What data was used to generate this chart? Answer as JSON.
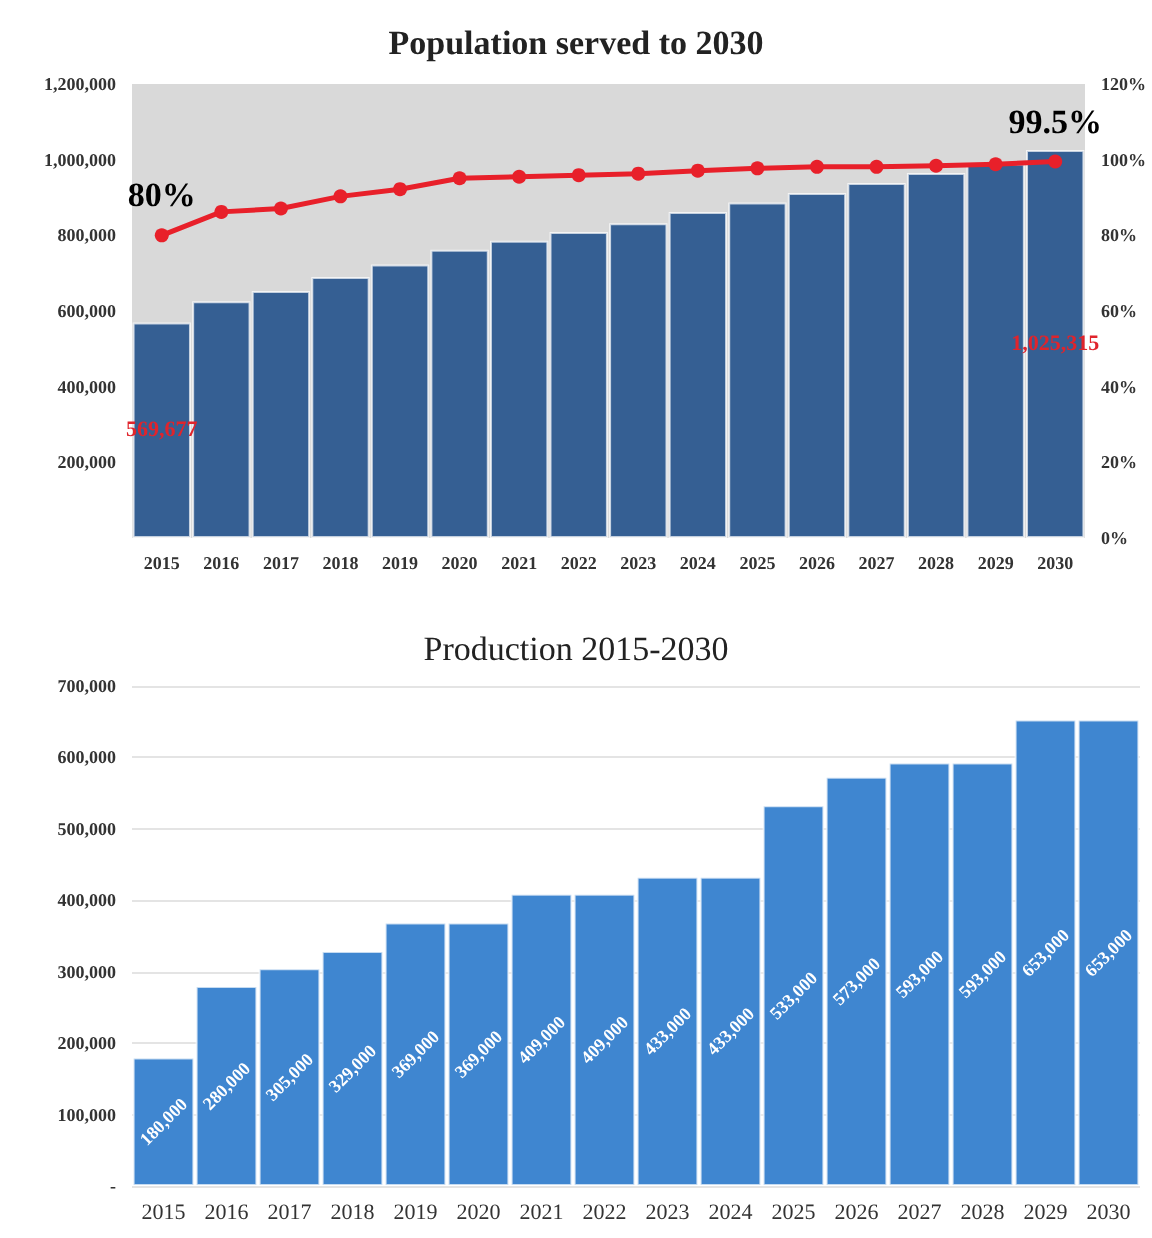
{
  "chart_data": [
    {
      "type": "bar",
      "title": "Population served to 2030",
      "categories": [
        "2015",
        "2016",
        "2017",
        "2018",
        "2019",
        "2020",
        "2021",
        "2022",
        "2023",
        "2024",
        "2025",
        "2026",
        "2027",
        "2028",
        "2029",
        "2030"
      ],
      "series": [
        {
          "color": "#355f93",
          "values": [
            569677,
            626000,
            653000,
            690000,
            723000,
            762000,
            786000,
            809000,
            832000,
            862000,
            887000,
            912000,
            938000,
            965000,
            990000,
            1025315
          ],
          "value_labels": [
            "569,677",
            null,
            null,
            null,
            null,
            null,
            null,
            null,
            null,
            null,
            null,
            null,
            null,
            null,
            null,
            "1,025,315"
          ]
        },
        {
          "type": "line",
          "axis": "y2",
          "color": "#e8202a",
          "marker": "circle",
          "values": [
            80,
            86.2,
            87.1,
            90.3,
            92.2,
            95.1,
            95.5,
            95.9,
            96.3,
            97.1,
            97.7,
            98.1,
            98.1,
            98.4,
            98.8,
            99.5
          ],
          "value_labels": [
            "80%",
            null,
            null,
            null,
            null,
            null,
            null,
            null,
            null,
            null,
            null,
            null,
            null,
            null,
            null,
            "99.5%"
          ]
        }
      ],
      "ylim": [
        0,
        1200000
      ],
      "yticks": [
        {
          "value": 0,
          "label": null
        },
        {
          "value": 200000,
          "label": "200,000"
        },
        {
          "value": 400000,
          "label": "400,000"
        },
        {
          "value": 600000,
          "label": "600,000"
        },
        {
          "value": 800000,
          "label": "800,000"
        },
        {
          "value": 1000000,
          "label": "1,000,000"
        },
        {
          "value": 1200000,
          "label": "1,200,000"
        }
      ],
      "y2lim": [
        0,
        120
      ],
      "y2ticks": [
        {
          "value": 0,
          "label": "0%"
        },
        {
          "value": 20,
          "label": "20%"
        },
        {
          "value": 40,
          "label": "40%"
        },
        {
          "value": 60,
          "label": "60%"
        },
        {
          "value": 80,
          "label": "80%"
        },
        {
          "value": 100,
          "label": "100%"
        },
        {
          "value": 120,
          "label": "120%"
        }
      ],
      "grid": false
    },
    {
      "type": "bar",
      "title": "Production 2015-2030",
      "categories": [
        "2015",
        "2016",
        "2017",
        "2018",
        "2019",
        "2020",
        "2021",
        "2022",
        "2023",
        "2024",
        "2025",
        "2026",
        "2027",
        "2028",
        "2029",
        "2030"
      ],
      "values": [
        180000,
        280000,
        305000,
        329000,
        369000,
        369000,
        409000,
        409000,
        433000,
        433000,
        533000,
        573000,
        593000,
        593000,
        653000,
        653000
      ],
      "color": "#3f86d0",
      "value_labels": [
        "180,000",
        "280,000",
        "305,000",
        "329,000",
        "369,000",
        "369,000",
        "409,000",
        "409,000",
        "433,000",
        "433,000",
        "533,000",
        "573,000",
        "593,000",
        "593,000",
        "653,000",
        "653,000"
      ],
      "ylim": [
        0,
        700000
      ],
      "yticks": [
        {
          "value": 0,
          "label": "-"
        },
        {
          "value": 100000,
          "label": "100,000"
        },
        {
          "value": 200000,
          "label": "200,000"
        },
        {
          "value": 300000,
          "label": "300,000"
        },
        {
          "value": 400000,
          "label": "400,000"
        },
        {
          "value": 500000,
          "label": "500,000"
        },
        {
          "value": 600000,
          "label": "600,000"
        },
        {
          "value": 700000,
          "label": "700,000"
        }
      ],
      "grid": "y"
    }
  ]
}
